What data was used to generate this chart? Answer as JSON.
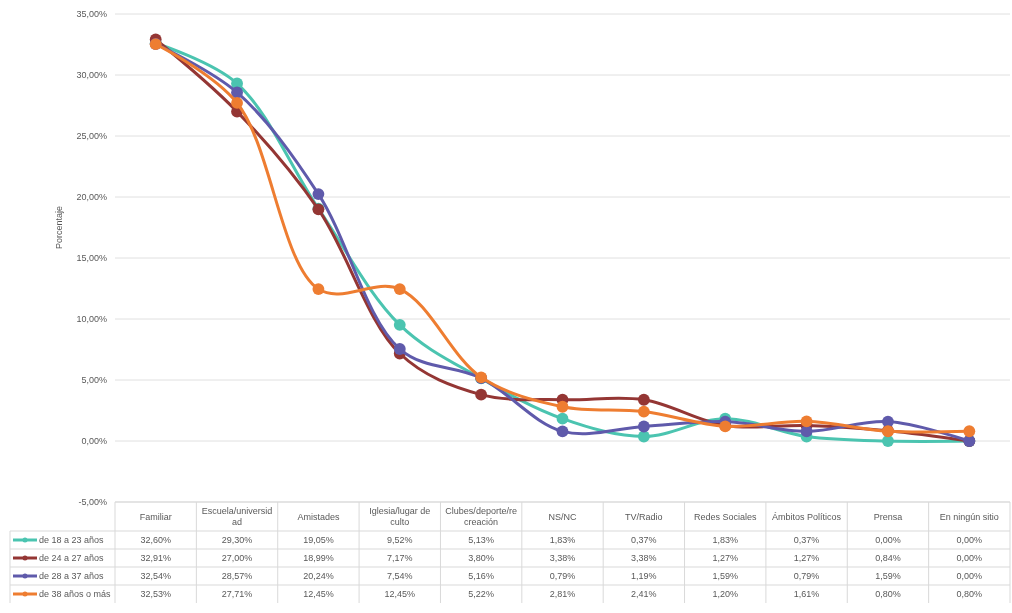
{
  "chart_data": {
    "type": "line",
    "ylabel": "Porcentaje",
    "categories": [
      "Familiar",
      "Escuela/universidad",
      "Amistades",
      "Iglesia/lugar de culto",
      "Clubes/deporte/recreación",
      "NS/NC",
      "TV/Radio",
      "Redes Sociales",
      "Ámbitos Políticos",
      "Prensa",
      "En ningún sitio"
    ],
    "series": [
      {
        "name": "de 18 a 23 años",
        "color": "#4bc4b0",
        "values": [
          32.6,
          29.3,
          19.05,
          9.52,
          5.13,
          1.83,
          0.37,
          1.83,
          0.37,
          0.0,
          0.0
        ],
        "value_labels": [
          "32,60%",
          "29,30%",
          "19,05%",
          "9,52%",
          "5,13%",
          "1,83%",
          "0,37%",
          "1,83%",
          "0,37%",
          "0,00%",
          "0,00%"
        ]
      },
      {
        "name": "de 24 a 27 años",
        "color": "#943634",
        "values": [
          32.91,
          27.0,
          18.99,
          7.17,
          3.8,
          3.38,
          3.38,
          1.27,
          1.27,
          0.84,
          0.0
        ],
        "value_labels": [
          "32,91%",
          "27,00%",
          "18,99%",
          "7,17%",
          "3,80%",
          "3,38%",
          "3,38%",
          "1,27%",
          "1,27%",
          "0,84%",
          "0,00%"
        ]
      },
      {
        "name": "de 28 a 37 años",
        "color": "#5f5aab",
        "values": [
          32.54,
          28.57,
          20.24,
          7.54,
          5.16,
          0.79,
          1.19,
          1.59,
          0.79,
          1.59,
          0.0
        ],
        "value_labels": [
          "32,54%",
          "28,57%",
          "20,24%",
          "7,54%",
          "5,16%",
          "0,79%",
          "1,19%",
          "1,59%",
          "0,79%",
          "1,59%",
          "0,00%"
        ]
      },
      {
        "name": "de 38 años o más",
        "color": "#ee7d31",
        "values": [
          32.53,
          27.71,
          12.45,
          12.45,
          5.22,
          2.81,
          2.41,
          1.2,
          1.61,
          0.8,
          0.8
        ],
        "value_labels": [
          "32,53%",
          "27,71%",
          "12,45%",
          "12,45%",
          "5,22%",
          "2,81%",
          "2,41%",
          "1,20%",
          "1,61%",
          "0,80%",
          "0,80%"
        ]
      }
    ],
    "ylim": [
      -5,
      35
    ],
    "yticks": [
      {
        "value": -5,
        "label": "-5,00%"
      },
      {
        "value": 0,
        "label": "0,00%"
      },
      {
        "value": 5,
        "label": "5,00%"
      },
      {
        "value": 10,
        "label": "10,00%"
      },
      {
        "value": 15,
        "label": "15,00%"
      },
      {
        "value": 20,
        "label": "20,00%"
      },
      {
        "value": 25,
        "label": "25,00%"
      },
      {
        "value": 30,
        "label": "30,00%"
      },
      {
        "value": 35,
        "label": "35,00%"
      }
    ],
    "grid": "y",
    "legend": "bottom",
    "marker": "circle",
    "line_style": "solid"
  }
}
